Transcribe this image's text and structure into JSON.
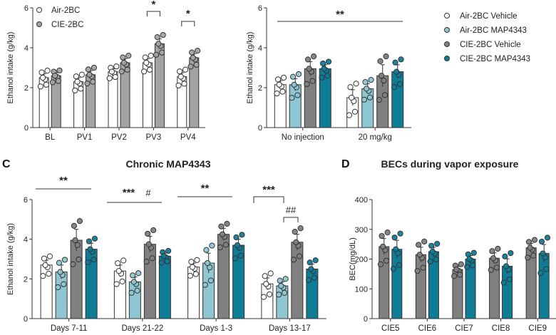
{
  "colors": {
    "air_vehicle": "#ffffff",
    "air_map": "#8ec7d2",
    "cie_vehicle": "#808080",
    "cie_map": "#0f7c96",
    "cie_panelA": "#a3a3a3"
  },
  "chart_data": [
    {
      "id": "A",
      "type": "bar",
      "panel_label": "",
      "title": "",
      "xlabel": "",
      "ylabel": "Ethanol intake (g/kg)",
      "ylim": [
        0,
        6
      ],
      "yticks": [
        0,
        2,
        4,
        6
      ],
      "categories": [
        "BL",
        "PV1",
        "PV2",
        "PV3",
        "PV4"
      ],
      "legend": [
        "Air-2BC",
        "CIE-2BC"
      ],
      "legend_position": "top-left",
      "series": [
        {
          "name": "Air-2BC",
          "values": [
            2.5,
            2.3,
            2.8,
            3.25,
            2.55
          ],
          "sem": [
            0.2,
            0.2,
            0.15,
            0.2,
            0.2
          ]
        },
        {
          "name": "CIE-2BC",
          "values": [
            2.6,
            2.65,
            3.25,
            4.2,
            3.5
          ],
          "sem": [
            0.15,
            0.2,
            0.2,
            0.25,
            0.2
          ]
        }
      ],
      "annotations": [
        {
          "category": "PV3",
          "text": "*",
          "type": "bracket"
        },
        {
          "category": "PV4",
          "text": "*",
          "type": "bracket"
        }
      ]
    },
    {
      "id": "B",
      "type": "bar",
      "panel_label": "",
      "title": "",
      "xlabel": "",
      "ylabel": "Ethanol intake (g/kg)",
      "ylim": [
        0,
        6
      ],
      "yticks": [
        0,
        2,
        4,
        6
      ],
      "categories": [
        "No injection",
        "20 mg/kg"
      ],
      "legend": [
        "Air-2BC Vehicle",
        "Air-2BC MAP4343",
        "CIE-2BC Vehicle",
        "CIE-2BC MAP4343"
      ],
      "legend_position": "right",
      "series": [
        {
          "name": "Air-2BC Vehicle",
          "values": [
            2.15,
            1.5
          ],
          "sem": [
            0.2,
            0.4
          ]
        },
        {
          "name": "Air-2BC MAP4343",
          "values": [
            2.15,
            1.95
          ],
          "sem": [
            0.3,
            0.25
          ]
        },
        {
          "name": "CIE-2BC Vehicle",
          "values": [
            2.95,
            2.6
          ],
          "sem": [
            0.35,
            0.55
          ]
        },
        {
          "name": "CIE-2BC MAP4343",
          "values": [
            2.95,
            2.8
          ],
          "sem": [
            0.2,
            0.35
          ]
        }
      ],
      "annotations": [
        {
          "span": "all",
          "text": "**",
          "type": "line"
        }
      ]
    },
    {
      "id": "C",
      "type": "bar",
      "panel_label": "C",
      "title": "Chronic MAP4343",
      "xlabel": "",
      "ylabel": "Ethanol intake (g/kg)",
      "ylim": [
        0,
        6
      ],
      "yticks": [
        0,
        2,
        4,
        6
      ],
      "categories": [
        "Days 7-11",
        "Days 21-22",
        "Days 1-3",
        "Days 13-17"
      ],
      "series": [
        {
          "name": "Air-2BC Vehicle",
          "values": [
            2.7,
            2.4,
            2.6,
            1.75
          ],
          "sem": [
            0.25,
            0.3,
            0.2,
            0.3
          ]
        },
        {
          "name": "Air-2BC MAP4343",
          "values": [
            2.35,
            1.85,
            2.8,
            1.65
          ],
          "sem": [
            0.35,
            0.25,
            0.5,
            0.2
          ]
        },
        {
          "name": "CIE-2BC Vehicle",
          "values": [
            3.95,
            3.75,
            4.25,
            3.85
          ],
          "sem": [
            0.55,
            0.4,
            0.3,
            0.4
          ]
        },
        {
          "name": "CIE-2BC MAP4343",
          "values": [
            3.5,
            3.15,
            3.7,
            2.5
          ],
          "sem": [
            0.3,
            0.15,
            0.3,
            0.25
          ]
        }
      ],
      "annotations": [
        {
          "category": "Days 7-11",
          "text": "**",
          "type": "line"
        },
        {
          "category": "Days 21-22",
          "text": "***",
          "type": "line",
          "extra": "#"
        },
        {
          "category": "Days 1-3",
          "text": "**",
          "type": "line"
        },
        {
          "category": "Days 13-17",
          "text": "***",
          "type": "bracket",
          "extra": "##"
        }
      ]
    },
    {
      "id": "D",
      "type": "bar",
      "panel_label": "D",
      "title": "BECs during vapor exposure",
      "xlabel": "",
      "ylabel": "BEC(mg/dL)",
      "ylim": [
        0,
        400
      ],
      "yticks": [
        0,
        100,
        200,
        300,
        400
      ],
      "categories": [
        "CIE5",
        "CIE6",
        "CIE7",
        "CIE8",
        "CIE9"
      ],
      "series": [
        {
          "name": "CIE-2BC Vehicle",
          "values": [
            242,
            215,
            165,
            203,
            238
          ],
          "sem": [
            27,
            25,
            10,
            18,
            15
          ]
        },
        {
          "name": "CIE-2BC MAP4343",
          "values": [
            233,
            225,
            200,
            176,
            219
          ],
          "sem": [
            30,
            15,
            12,
            25,
            30
          ]
        }
      ]
    }
  ]
}
